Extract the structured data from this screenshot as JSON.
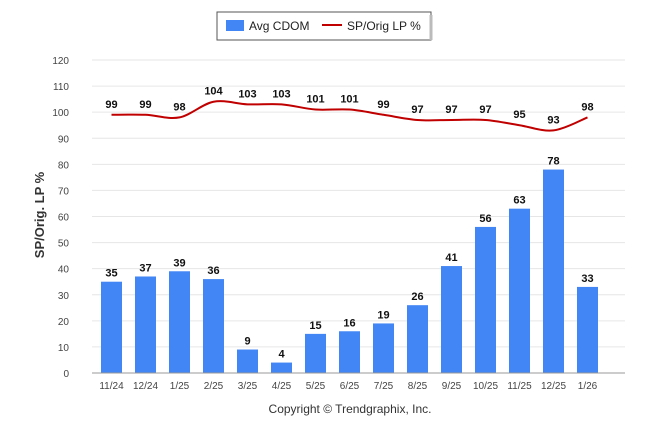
{
  "chart_data": {
    "type": "bar",
    "categories": [
      "11/24",
      "12/24",
      "1/25",
      "2/25",
      "3/25",
      "4/25",
      "5/25",
      "6/25",
      "7/25",
      "8/25",
      "9/25",
      "10/25",
      "11/25",
      "12/25",
      "1/26"
    ],
    "series": [
      {
        "name": "Avg CDOM",
        "type": "bar",
        "color": "#4285f4",
        "values": [
          35,
          37,
          39,
          36,
          9,
          4,
          15,
          16,
          19,
          26,
          41,
          56,
          63,
          78,
          33
        ]
      },
      {
        "name": "SP/Orig LP %",
        "type": "line",
        "color": "#c00000",
        "values": [
          99,
          99,
          98,
          104,
          103,
          103,
          101,
          101,
          99,
          97,
          97,
          97,
          95,
          93,
          98
        ]
      }
    ],
    "ylabel": "SP/Orig. LP %",
    "ylim": [
      0,
      120
    ],
    "yticks": [
      0,
      10,
      20,
      30,
      40,
      50,
      60,
      70,
      80,
      90,
      100,
      110,
      120
    ],
    "grid": true,
    "legend_position": "top-center"
  },
  "footer": {
    "copyright": "Copyright © Trendgraphix, Inc."
  }
}
